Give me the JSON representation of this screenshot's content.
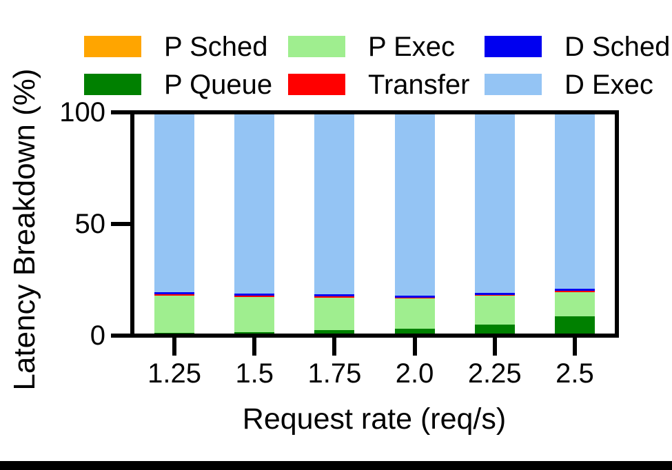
{
  "chart_data": {
    "type": "bar",
    "stacked": true,
    "title": "",
    "xlabel": "Request rate (req/s)",
    "ylabel": "Latency Breakdown (%)",
    "categories": [
      "1.25",
      "1.5",
      "1.75",
      "2.0",
      "2.25",
      "2.5"
    ],
    "series": [
      {
        "name": "P Sched",
        "color": "#FFA500",
        "values": [
          0,
          0,
          0,
          0,
          0,
          0
        ]
      },
      {
        "name": "P Queue",
        "color": "#008000",
        "values": [
          0.3,
          0.7,
          1.7,
          2.3,
          4.1,
          7.9
        ]
      },
      {
        "name": "P Exec",
        "color": "#9FEE8F",
        "values": [
          17.0,
          16.0,
          14.8,
          13.6,
          13.3,
          11.1
        ]
      },
      {
        "name": "Transfer",
        "color": "#FF0000",
        "values": [
          0.6,
          0.5,
          0.5,
          0.5,
          0.3,
          0.4
        ]
      },
      {
        "name": "D Sched",
        "color": "#0000F0",
        "values": [
          0.9,
          1.0,
          0.9,
          0.8,
          0.9,
          0.9
        ]
      },
      {
        "name": "D Exec",
        "color": "#94C4F4",
        "values": [
          81.2,
          81.8,
          82.1,
          82.8,
          81.4,
          79.7
        ]
      }
    ],
    "ylim": [
      0,
      100
    ],
    "yticks": [
      0,
      50,
      100
    ],
    "grid": false,
    "legend_position": "top",
    "legend_columns": 3,
    "legend_order_column_major": [
      "P Sched",
      "P Queue",
      "P Exec",
      "Transfer",
      "D Sched",
      "D Exec"
    ]
  },
  "style_hints": {
    "axis_color": "#000000",
    "background_color": "#ffffff",
    "bottom_strip_color": "#000000"
  }
}
